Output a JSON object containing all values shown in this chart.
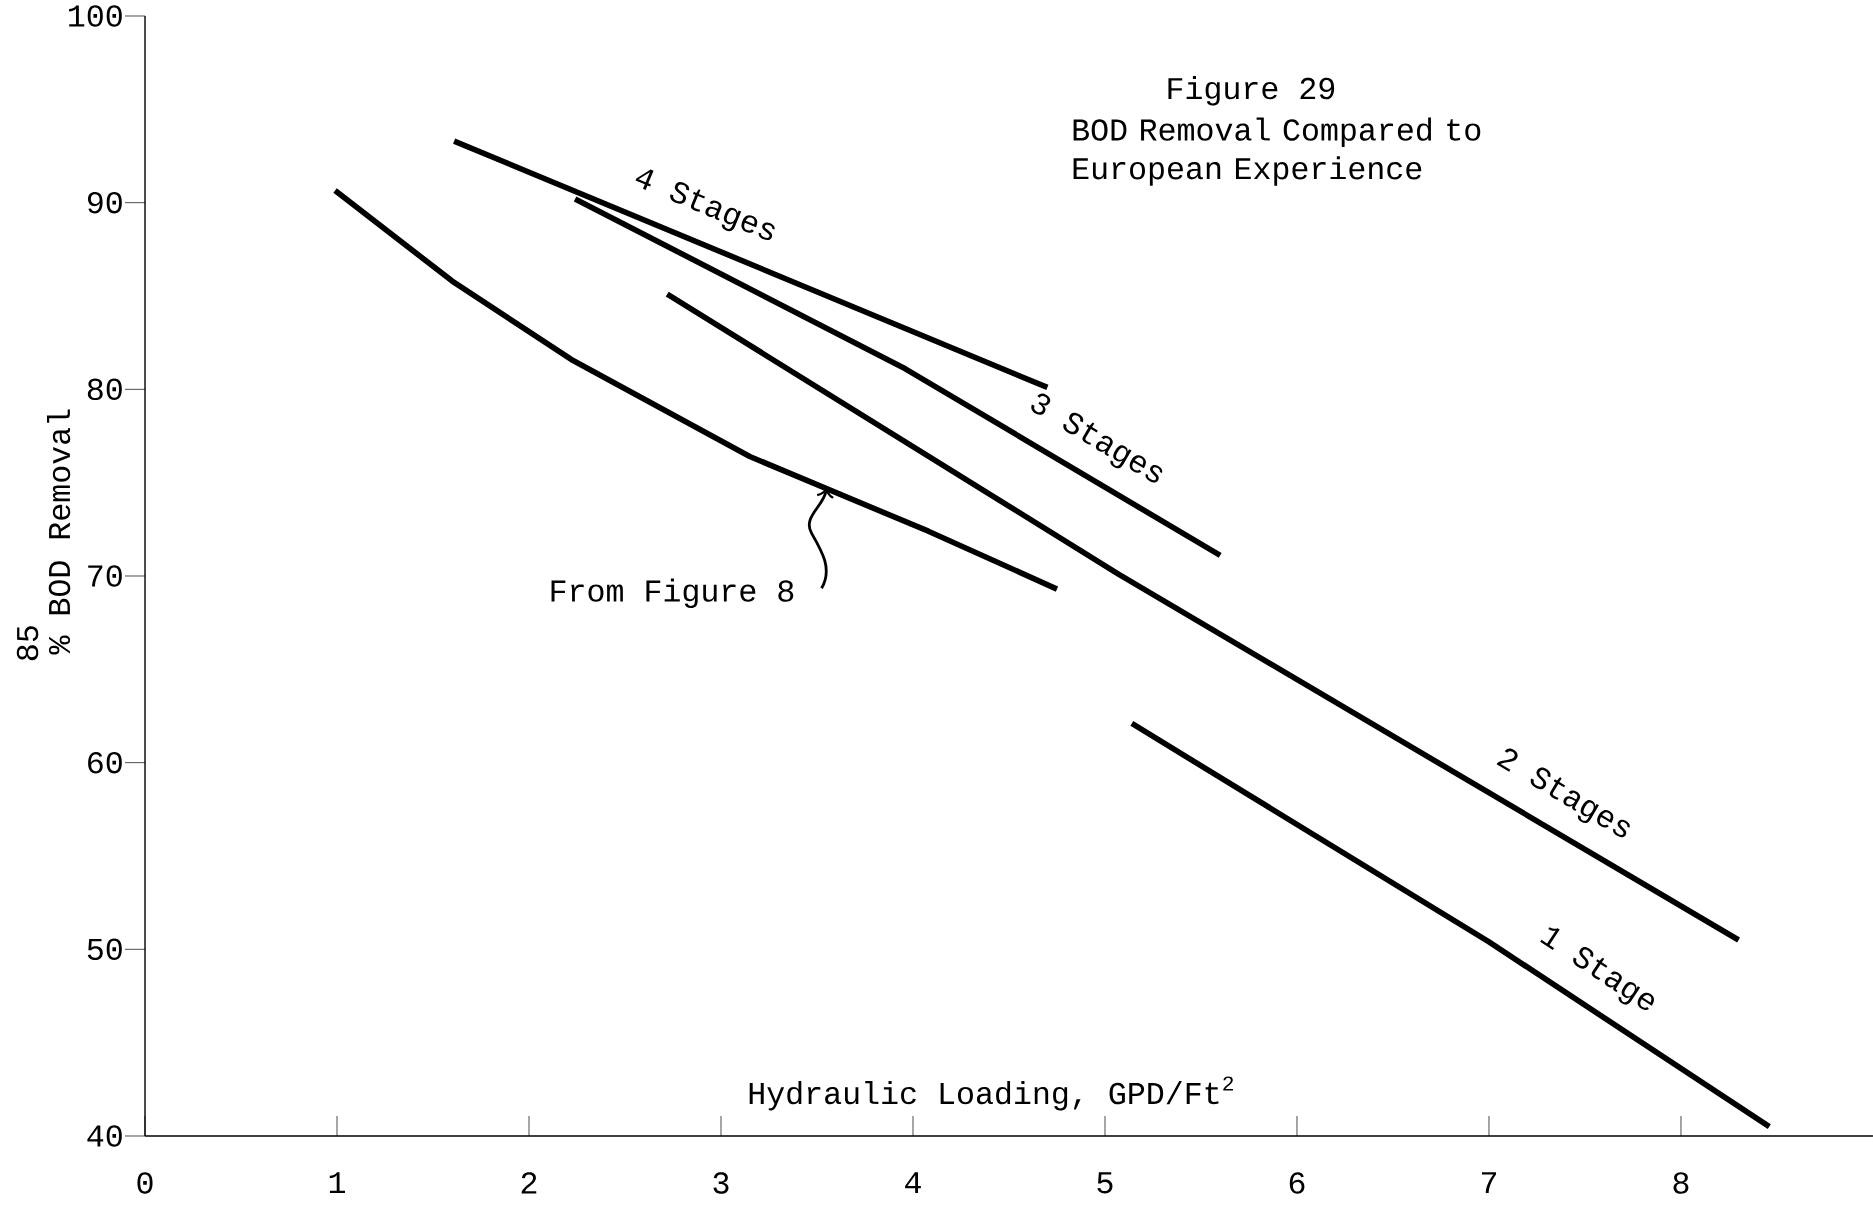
{
  "chart_data": {
    "type": "line",
    "title": "Figure 29",
    "subtitle": "BOD Removal Compared to European Experience",
    "xlabel": "Hydraulic Loading, GPD/Ft$^{2}$",
    "ylabel": "% BOD Removal",
    "xlim": [
      0,
      9
    ],
    "ylim": [
      40,
      100
    ],
    "xticks": [
      0,
      1,
      2,
      3,
      4,
      5,
      6,
      7,
      8
    ],
    "yticks": [
      40,
      50,
      60,
      70,
      80,
      90,
      100
    ],
    "grid": false,
    "marker": "none",
    "line_style": "solid",
    "series": [
      {
        "name": "4 Stages",
        "color": "#000000",
        "x": [
          1.61,
          4.7
        ],
        "values": [
          93.3,
          80.1
        ]
      },
      {
        "name": "3 Stages",
        "color": "#000000",
        "x": [
          2.24,
          3.96,
          5.6
        ],
        "values": [
          90.2,
          81.1,
          71.1
        ]
      },
      {
        "name": "2 Stages",
        "color": "#000000",
        "x": [
          2.72,
          5.07,
          8.3
        ],
        "values": [
          85.1,
          70.1,
          50.5
        ]
      },
      {
        "name": "1 Stage",
        "color": "#000000",
        "x": [
          5.14,
          7.0,
          8.46
        ],
        "values": [
          62.1,
          50.4,
          40.5
        ]
      },
      {
        "color": "#000000",
        "x": [
          0.99,
          1.6,
          2.22,
          3.15,
          4.08,
          4.75
        ],
        "values": [
          90.65,
          85.8,
          81.6,
          76.4,
          72.4,
          69.3
        ]
      }
    ],
    "annotations": [
      {
        "text": "From Figure 8",
        "x": 3.55,
        "y": 74.7
      },
      "85"
    ]
  }
}
